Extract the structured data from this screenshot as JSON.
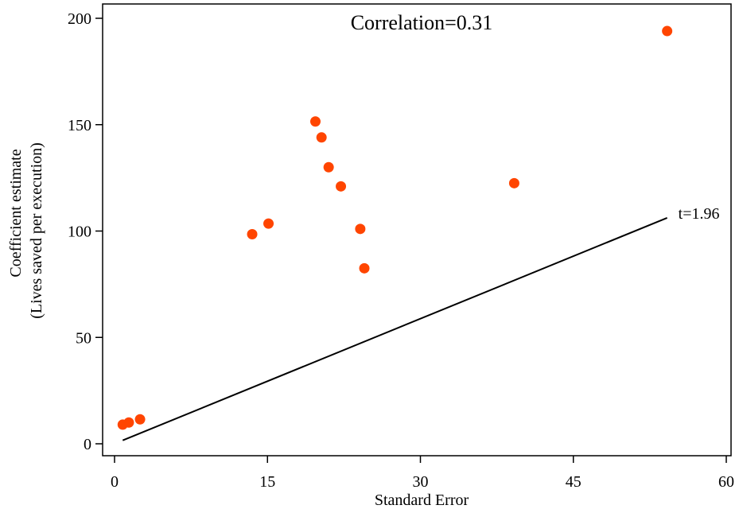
{
  "chart_data": {
    "type": "scatter",
    "title": "",
    "annotation": "Correlation=0.31",
    "xlabel": "Standard Error",
    "ylabel_line1": "Coefficient estimate",
    "ylabel_line2": "(Lives saved per execution)",
    "xlim": [
      0,
      60
    ],
    "ylim": [
      0,
      200
    ],
    "x_ticks": [
      0,
      15,
      30,
      45,
      60
    ],
    "y_ticks": [
      0,
      50,
      100,
      150,
      200
    ],
    "grid": false,
    "marker_color": "#ff4500",
    "line_color": "#000000",
    "series": [
      {
        "points": [
          {
            "x": 0.8,
            "y": 9
          },
          {
            "x": 1.4,
            "y": 10
          },
          {
            "x": 2.5,
            "y": 11.5
          },
          {
            "x": 13.5,
            "y": 98.5
          },
          {
            "x": 15.1,
            "y": 103.5
          },
          {
            "x": 19.7,
            "y": 151.5
          },
          {
            "x": 20.3,
            "y": 144
          },
          {
            "x": 21.0,
            "y": 130
          },
          {
            "x": 22.2,
            "y": 121
          },
          {
            "x": 24.1,
            "y": 101
          },
          {
            "x": 24.5,
            "y": 82.5
          },
          {
            "x": 39.2,
            "y": 122.5
          },
          {
            "x": 54.2,
            "y": 194
          }
        ]
      }
    ],
    "reference_line": {
      "label": "t=1.96",
      "x_start": 0.8,
      "y_start": 1.6,
      "x_end": 54.2,
      "y_end": 106.2
    }
  }
}
